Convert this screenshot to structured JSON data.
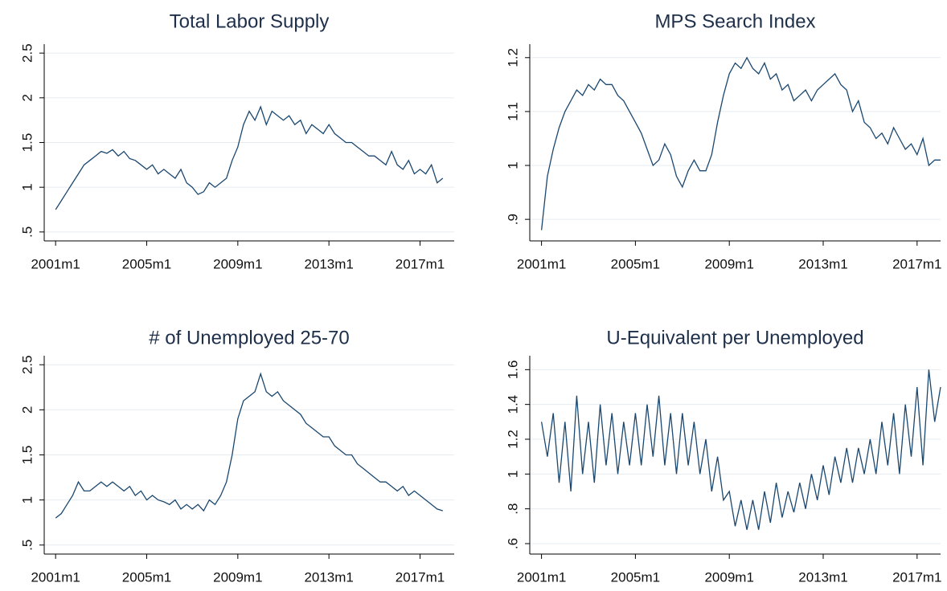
{
  "chart_data": [
    {
      "type": "line",
      "title": "Total Labor Supply",
      "color": "#1a476f",
      "grid": true,
      "xlim": [
        2000.5,
        2018.5
      ],
      "ylim": [
        0.4,
        2.6
      ],
      "xticks": [
        {
          "value": 2001,
          "label": "2001m1"
        },
        {
          "value": 2005,
          "label": "2005m1"
        },
        {
          "value": 2009,
          "label": "2009m1"
        },
        {
          "value": 2013,
          "label": "2013m1"
        },
        {
          "value": 2017,
          "label": "2017m1"
        }
      ],
      "yticks": [
        {
          "value": 0.5,
          "label": ".5"
        },
        1,
        1.5,
        2,
        2.5
      ],
      "x": [
        2001,
        2001.25,
        2001.5,
        2001.75,
        2002,
        2002.25,
        2002.5,
        2002.75,
        2003,
        2003.25,
        2003.5,
        2003.75,
        2004,
        2004.25,
        2004.5,
        2004.75,
        2005,
        2005.25,
        2005.5,
        2005.75,
        2006,
        2006.25,
        2006.5,
        2006.75,
        2007,
        2007.25,
        2007.5,
        2007.75,
        2008,
        2008.25,
        2008.5,
        2008.75,
        2009,
        2009.25,
        2009.5,
        2009.75,
        2010,
        2010.25,
        2010.5,
        2010.75,
        2011,
        2011.25,
        2011.5,
        2011.75,
        2012,
        2012.25,
        2012.5,
        2012.75,
        2013,
        2013.25,
        2013.5,
        2013.75,
        2014,
        2014.25,
        2014.5,
        2014.75,
        2015,
        2015.25,
        2015.5,
        2015.75,
        2016,
        2016.25,
        2016.5,
        2016.75,
        2017,
        2017.25,
        2017.5,
        2017.75,
        2018
      ],
      "values": [
        0.75,
        0.85,
        0.95,
        1.05,
        1.15,
        1.25,
        1.3,
        1.35,
        1.4,
        1.38,
        1.42,
        1.35,
        1.4,
        1.32,
        1.3,
        1.25,
        1.2,
        1.25,
        1.15,
        1.2,
        1.15,
        1.1,
        1.2,
        1.05,
        1.0,
        0.92,
        0.95,
        1.05,
        1.0,
        1.05,
        1.1,
        1.3,
        1.45,
        1.7,
        1.85,
        1.75,
        1.9,
        1.7,
        1.85,
        1.8,
        1.75,
        1.8,
        1.7,
        1.75,
        1.6,
        1.7,
        1.65,
        1.6,
        1.7,
        1.6,
        1.55,
        1.5,
        1.5,
        1.45,
        1.4,
        1.35,
        1.35,
        1.3,
        1.25,
        1.4,
        1.25,
        1.2,
        1.3,
        1.15,
        1.2,
        1.15,
        1.25,
        1.05,
        1.1
      ]
    },
    {
      "type": "line",
      "title": "MPS Search Index",
      "color": "#1a476f",
      "grid": true,
      "xlim": [
        2000.5,
        2018.0
      ],
      "ylim": [
        0.86,
        1.225
      ],
      "xticks": [
        {
          "value": 2001,
          "label": "2001m1"
        },
        {
          "value": 2005,
          "label": "2005m1"
        },
        {
          "value": 2009,
          "label": "2009m1"
        },
        {
          "value": 2013,
          "label": "2013m1"
        },
        {
          "value": 2017,
          "label": "2017m1"
        }
      ],
      "yticks": [
        {
          "value": 0.9,
          "label": ".9"
        },
        1,
        1.1,
        1.2
      ],
      "x": [
        2001,
        2001.25,
        2001.5,
        2001.75,
        2002,
        2002.25,
        2002.5,
        2002.75,
        2003,
        2003.25,
        2003.5,
        2003.75,
        2004,
        2004.25,
        2004.5,
        2004.75,
        2005,
        2005.25,
        2005.5,
        2005.75,
        2006,
        2006.25,
        2006.5,
        2006.75,
        2007,
        2007.25,
        2007.5,
        2007.75,
        2008,
        2008.25,
        2008.5,
        2008.75,
        2009,
        2009.25,
        2009.5,
        2009.75,
        2010,
        2010.25,
        2010.5,
        2010.75,
        2011,
        2011.25,
        2011.5,
        2011.75,
        2012,
        2012.25,
        2012.5,
        2012.75,
        2013,
        2013.25,
        2013.5,
        2013.75,
        2014,
        2014.25,
        2014.5,
        2014.75,
        2015,
        2015.25,
        2015.5,
        2015.75,
        2016,
        2016.25,
        2016.5,
        2016.75,
        2017,
        2017.25,
        2017.5,
        2017.75,
        2018
      ],
      "values": [
        0.88,
        0.98,
        1.03,
        1.07,
        1.1,
        1.12,
        1.14,
        1.13,
        1.15,
        1.14,
        1.16,
        1.15,
        1.15,
        1.13,
        1.12,
        1.1,
        1.08,
        1.06,
        1.03,
        1.0,
        1.01,
        1.04,
        1.02,
        0.98,
        0.96,
        0.99,
        1.01,
        0.99,
        0.99,
        1.02,
        1.08,
        1.13,
        1.17,
        1.19,
        1.18,
        1.2,
        1.18,
        1.17,
        1.19,
        1.16,
        1.17,
        1.14,
        1.15,
        1.12,
        1.13,
        1.14,
        1.12,
        1.14,
        1.15,
        1.16,
        1.17,
        1.15,
        1.14,
        1.1,
        1.12,
        1.08,
        1.07,
        1.05,
        1.06,
        1.04,
        1.07,
        1.05,
        1.03,
        1.04,
        1.02,
        1.05,
        1.0,
        1.01,
        1.01
      ]
    },
    {
      "type": "line",
      "title": "# of Unemployed 25-70",
      "color": "#1a476f",
      "grid": true,
      "xlim": [
        2000.5,
        2018.5
      ],
      "ylim": [
        0.4,
        2.6
      ],
      "xticks": [
        {
          "value": 2001,
          "label": "2001m1"
        },
        {
          "value": 2005,
          "label": "2005m1"
        },
        {
          "value": 2009,
          "label": "2009m1"
        },
        {
          "value": 2013,
          "label": "2013m1"
        },
        {
          "value": 2017,
          "label": "2017m1"
        }
      ],
      "yticks": [
        {
          "value": 0.5,
          "label": ".5"
        },
        1,
        1.5,
        2,
        2.5
      ],
      "x": [
        2001,
        2001.25,
        2001.5,
        2001.75,
        2002,
        2002.25,
        2002.5,
        2002.75,
        2003,
        2003.25,
        2003.5,
        2003.75,
        2004,
        2004.25,
        2004.5,
        2004.75,
        2005,
        2005.25,
        2005.5,
        2005.75,
        2006,
        2006.25,
        2006.5,
        2006.75,
        2007,
        2007.25,
        2007.5,
        2007.75,
        2008,
        2008.25,
        2008.5,
        2008.75,
        2009,
        2009.25,
        2009.5,
        2009.75,
        2010,
        2010.25,
        2010.5,
        2010.75,
        2011,
        2011.25,
        2011.5,
        2011.75,
        2012,
        2012.25,
        2012.5,
        2012.75,
        2013,
        2013.25,
        2013.5,
        2013.75,
        2014,
        2014.25,
        2014.5,
        2014.75,
        2015,
        2015.25,
        2015.5,
        2015.75,
        2016,
        2016.25,
        2016.5,
        2016.75,
        2017,
        2017.25,
        2017.5,
        2017.75,
        2018
      ],
      "values": [
        0.8,
        0.85,
        0.95,
        1.05,
        1.2,
        1.1,
        1.1,
        1.15,
        1.2,
        1.15,
        1.2,
        1.15,
        1.1,
        1.15,
        1.05,
        1.1,
        1.0,
        1.05,
        1.0,
        0.98,
        0.95,
        1.0,
        0.9,
        0.95,
        0.9,
        0.95,
        0.88,
        1.0,
        0.95,
        1.05,
        1.2,
        1.5,
        1.9,
        2.1,
        2.15,
        2.2,
        2.4,
        2.2,
        2.15,
        2.2,
        2.1,
        2.05,
        2.0,
        1.95,
        1.85,
        1.8,
        1.75,
        1.7,
        1.7,
        1.6,
        1.55,
        1.5,
        1.5,
        1.4,
        1.35,
        1.3,
        1.25,
        1.2,
        1.2,
        1.15,
        1.1,
        1.15,
        1.05,
        1.1,
        1.05,
        1.0,
        0.95,
        0.9,
        0.88
      ]
    },
    {
      "type": "line",
      "title": "U-Equivalent per Unemployed",
      "color": "#1a476f",
      "grid": true,
      "xlim": [
        2000.5,
        2018.0
      ],
      "ylim": [
        0.54,
        1.68
      ],
      "xticks": [
        {
          "value": 2001,
          "label": "2001m1"
        },
        {
          "value": 2005,
          "label": "2005m1"
        },
        {
          "value": 2009,
          "label": "2009m1"
        },
        {
          "value": 2013,
          "label": "2013m1"
        },
        {
          "value": 2017,
          "label": "2017m1"
        }
      ],
      "yticks": [
        {
          "value": 0.6,
          "label": ".6"
        },
        {
          "value": 0.8,
          "label": ".8"
        },
        1,
        1.2,
        1.4,
        1.6
      ],
      "x": [
        2001,
        2001.25,
        2001.5,
        2001.75,
        2002,
        2002.25,
        2002.5,
        2002.75,
        2003,
        2003.25,
        2003.5,
        2003.75,
        2004,
        2004.25,
        2004.5,
        2004.75,
        2005,
        2005.25,
        2005.5,
        2005.75,
        2006,
        2006.25,
        2006.5,
        2006.75,
        2007,
        2007.25,
        2007.5,
        2007.75,
        2008,
        2008.25,
        2008.5,
        2008.75,
        2009,
        2009.25,
        2009.5,
        2009.75,
        2010,
        2010.25,
        2010.5,
        2010.75,
        2011,
        2011.25,
        2011.5,
        2011.75,
        2012,
        2012.25,
        2012.5,
        2012.75,
        2013,
        2013.25,
        2013.5,
        2013.75,
        2014,
        2014.25,
        2014.5,
        2014.75,
        2015,
        2015.25,
        2015.5,
        2015.75,
        2016,
        2016.25,
        2016.5,
        2016.75,
        2017,
        2017.25,
        2017.5,
        2017.75,
        2018
      ],
      "values": [
        1.3,
        1.1,
        1.35,
        0.95,
        1.3,
        0.9,
        1.45,
        1.0,
        1.3,
        0.95,
        1.4,
        1.05,
        1.35,
        1.0,
        1.3,
        1.05,
        1.35,
        1.05,
        1.4,
        1.1,
        1.45,
        1.05,
        1.35,
        1.0,
        1.35,
        1.05,
        1.3,
        1.0,
        1.2,
        0.9,
        1.1,
        0.85,
        0.9,
        0.7,
        0.85,
        0.68,
        0.85,
        0.68,
        0.9,
        0.72,
        0.95,
        0.75,
        0.9,
        0.78,
        0.95,
        0.8,
        1.0,
        0.85,
        1.05,
        0.88,
        1.1,
        0.95,
        1.15,
        0.95,
        1.15,
        1.0,
        1.2,
        1.0,
        1.3,
        1.05,
        1.35,
        1.0,
        1.4,
        1.1,
        1.5,
        1.05,
        1.6,
        1.3,
        1.5
      ]
    }
  ]
}
